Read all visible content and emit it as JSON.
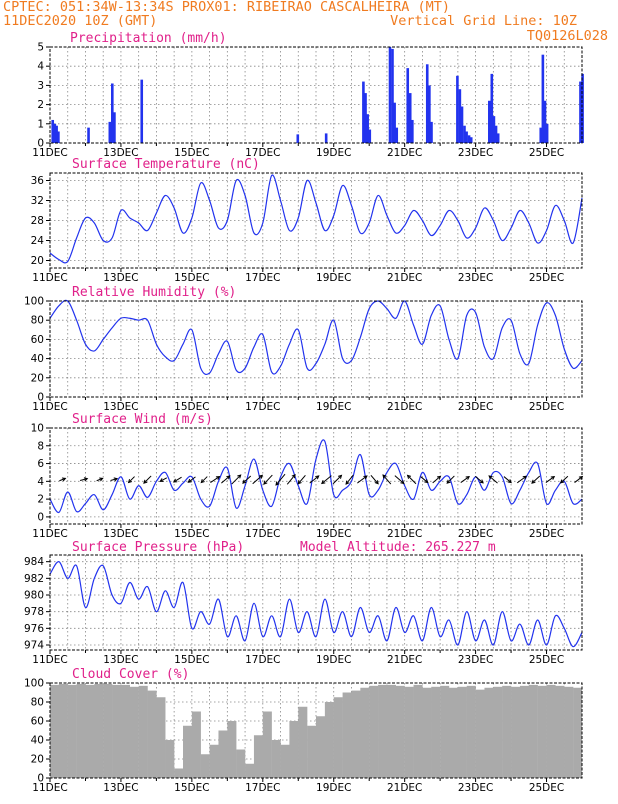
{
  "header": {
    "line1": "CPTEC:  051:34W-13:34S  PROX01: RIBEIRAO CASCALHEIRA (MT)",
    "date": "11DEC2020 10Z (GMT)",
    "vgrid": "Vertical Grid Line: 10Z",
    "code": "TQ0126L028"
  },
  "colors": {
    "header": "#f07b20",
    "title": "#e0208a",
    "series": "#2233ee",
    "cloud": "#aaaaaa",
    "grid": "#888888"
  },
  "x_axis": {
    "tick_labels": [
      "11DEC",
      "13DEC",
      "15DEC",
      "17DEC",
      "19DEC",
      "21DEC",
      "23DEC",
      "25DEC"
    ],
    "range_days": [
      0,
      15
    ]
  },
  "chart_data": [
    {
      "id": "precip",
      "type": "bar",
      "title": "Precipitation (mm/h)",
      "ylim": [
        0,
        5
      ],
      "yticks": [
        "0",
        "1",
        "2",
        "3",
        "4",
        "5"
      ],
      "x_unit": "day offset from 11DEC 10Z",
      "x": [
        0.04,
        0.1,
        0.15,
        0.2,
        1.05,
        1.65,
        1.72,
        1.78,
        2.55,
        6.95,
        7.75,
        8.8,
        8.86,
        8.92,
        8.98,
        9.55,
        9.62,
        9.68,
        9.74,
        10.05,
        10.12,
        10.18,
        10.6,
        10.66,
        10.72,
        11.45,
        11.52,
        11.58,
        11.65,
        11.71,
        11.78,
        11.84,
        12.35,
        12.42,
        12.48,
        12.54,
        12.6,
        13.8,
        13.86,
        13.92,
        13.98,
        14.92,
        14.98
      ],
      "values": [
        1.2,
        1.0,
        0.9,
        0.6,
        0.8,
        1.1,
        3.1,
        1.6,
        3.3,
        0.45,
        0.5,
        3.2,
        2.6,
        1.5,
        0.7,
        5.0,
        4.9,
        2.1,
        0.8,
        3.9,
        2.6,
        1.2,
        4.1,
        3.0,
        1.1,
        3.5,
        2.8,
        1.9,
        0.9,
        0.6,
        0.4,
        0.3,
        2.2,
        3.6,
        1.4,
        0.9,
        0.5,
        0.8,
        4.6,
        2.2,
        1.0,
        3.2,
        3.6
      ]
    },
    {
      "id": "temp",
      "type": "line",
      "title": "Surface Temperature (nC)",
      "ylim": [
        18.5,
        37.5
      ],
      "yticks": [
        "20",
        "24",
        "28",
        "32",
        "36"
      ],
      "x_unit": "day offset from 11DEC 10Z",
      "x": [
        0,
        0.25,
        0.5,
        0.75,
        1.0,
        1.25,
        1.5,
        1.75,
        2.0,
        2.25,
        2.5,
        2.75,
        3.0,
        3.25,
        3.5,
        3.75,
        4.0,
        4.25,
        4.5,
        4.75,
        5.0,
        5.25,
        5.5,
        5.75,
        6.0,
        6.25,
        6.5,
        6.75,
        7.0,
        7.25,
        7.5,
        7.75,
        8.0,
        8.25,
        8.5,
        8.75,
        9.0,
        9.25,
        9.5,
        9.75,
        10.0,
        10.25,
        10.5,
        10.75,
        11.0,
        11.25,
        11.5,
        11.75,
        12.0,
        12.25,
        12.5,
        12.75,
        13.0,
        13.25,
        13.5,
        13.75,
        14.0,
        14.25,
        14.5,
        14.75,
        15.0
      ],
      "values": [
        21.5,
        20.2,
        19.8,
        24.5,
        28.5,
        27.5,
        24.0,
        24.5,
        30.0,
        28.5,
        27.5,
        26.0,
        29.5,
        33.0,
        30.5,
        25.5,
        28.5,
        35.5,
        32.0,
        26.5,
        28.0,
        36.0,
        33.0,
        25.5,
        27.5,
        37.0,
        32.0,
        26.0,
        28.5,
        36.0,
        31.5,
        26.0,
        29.0,
        35.0,
        31.0,
        25.5,
        27.5,
        33.0,
        29.0,
        25.5,
        27.0,
        30.0,
        28.0,
        25.0,
        27.0,
        30.0,
        28.0,
        24.5,
        26.5,
        30.5,
        28.0,
        24.0,
        26.5,
        30.0,
        27.5,
        23.5,
        26.0,
        31.0,
        28.0,
        23.5,
        32.5
      ]
    },
    {
      "id": "rh",
      "type": "line",
      "title": "Relative Humidity (%)",
      "ylim": [
        0,
        100
      ],
      "yticks": [
        "0",
        "20",
        "40",
        "60",
        "80",
        "100"
      ],
      "x_unit": "day offset from 11DEC 10Z",
      "x": [
        0,
        0.25,
        0.5,
        0.75,
        1.0,
        1.25,
        1.5,
        1.75,
        2.0,
        2.25,
        2.5,
        2.75,
        3.0,
        3.25,
        3.5,
        3.75,
        4.0,
        4.25,
        4.5,
        4.75,
        5.0,
        5.25,
        5.5,
        5.75,
        6.0,
        6.25,
        6.5,
        6.75,
        7.0,
        7.25,
        7.5,
        7.75,
        8.0,
        8.25,
        8.5,
        8.75,
        9.0,
        9.25,
        9.5,
        9.75,
        10.0,
        10.25,
        10.5,
        10.75,
        11.0,
        11.25,
        11.5,
        11.75,
        12.0,
        12.25,
        12.5,
        12.75,
        13.0,
        13.25,
        13.5,
        13.75,
        14.0,
        14.25,
        14.5,
        14.75,
        15.0
      ],
      "values": [
        82,
        95,
        100,
        80,
        55,
        48,
        60,
        72,
        82,
        82,
        80,
        80,
        55,
        42,
        38,
        55,
        70,
        30,
        25,
        45,
        58,
        28,
        30,
        52,
        65,
        26,
        32,
        55,
        70,
        30,
        35,
        55,
        80,
        40,
        38,
        62,
        92,
        100,
        92,
        82,
        100,
        75,
        55,
        85,
        95,
        60,
        40,
        85,
        88,
        52,
        40,
        72,
        80,
        45,
        35,
        75,
        98,
        85,
        50,
        30,
        38
      ]
    },
    {
      "id": "wind",
      "type": "line",
      "title": "Surface Wind (m/s)",
      "ylim": [
        -0.8,
        10
      ],
      "yticks": [
        "0",
        "2",
        "4",
        "6",
        "8",
        "10"
      ],
      "x_unit": "day offset from 11DEC 10Z",
      "x": [
        0,
        0.25,
        0.5,
        0.75,
        1.0,
        1.25,
        1.5,
        1.75,
        2.0,
        2.25,
        2.5,
        2.75,
        3.0,
        3.25,
        3.5,
        3.75,
        4.0,
        4.25,
        4.5,
        4.75,
        5.0,
        5.25,
        5.5,
        5.75,
        6.0,
        6.25,
        6.5,
        6.75,
        7.0,
        7.25,
        7.5,
        7.75,
        8.0,
        8.25,
        8.5,
        8.75,
        9.0,
        9.25,
        9.5,
        9.75,
        10.0,
        10.25,
        10.5,
        10.75,
        11.0,
        11.25,
        11.5,
        11.75,
        12.0,
        12.25,
        12.5,
        12.75,
        13.0,
        13.25,
        13.5,
        13.75,
        14.0,
        14.25,
        14.5,
        14.75,
        15.0
      ],
      "values": [
        2.0,
        0.5,
        2.8,
        0.6,
        1.5,
        2.5,
        0.8,
        2.5,
        4.5,
        2.0,
        3.5,
        2.2,
        4.0,
        5.0,
        3.0,
        3.8,
        4.5,
        2.0,
        1.2,
        4.0,
        5.5,
        1.0,
        3.5,
        6.5,
        3.0,
        1.2,
        4.5,
        6.0,
        3.5,
        1.5,
        6.5,
        8.5,
        2.5,
        3.0,
        4.0,
        7.0,
        2.5,
        3.0,
        5.0,
        6.0,
        3.5,
        2.0,
        5.0,
        3.0,
        4.0,
        4.5,
        1.5,
        2.5,
        4.5,
        3.0,
        5.0,
        4.5,
        1.5,
        3.0,
        5.0,
        6.0,
        1.5,
        3.0,
        4.0,
        1.5,
        2.0
      ],
      "vectors_x": [
        0.35,
        0.95,
        1.4,
        1.8,
        2.3,
        2.75,
        3.2,
        3.6,
        4.0,
        4.35,
        4.65,
        4.95,
        5.25,
        5.55,
        5.85,
        6.15,
        6.5,
        6.8,
        7.1,
        7.45,
        7.8,
        8.1,
        8.45,
        8.8,
        9.15,
        9.5,
        9.85,
        10.2,
        10.55,
        10.9,
        11.3,
        11.7,
        12.1,
        12.5,
        12.9,
        13.3,
        13.7,
        14.1,
        14.5,
        14.9
      ],
      "vectors_u": [
        1.0,
        1.2,
        1.0,
        1.1,
        -1.0,
        -1.2,
        -1.1,
        -1.3,
        -1.2,
        -1.0,
        1.5,
        1.4,
        1.5,
        -1.3,
        1.6,
        -1.4,
        -1.5,
        1.3,
        -1.2,
        1.5,
        -1.6,
        1.4,
        -1.2,
        1.6,
        1.2,
        -1.3,
        1.5,
        -1.4,
        1.2,
        1.3,
        -1.2,
        1.4,
        1.3,
        -1.4,
        1.2,
        1.5,
        -1.3,
        1.4,
        -1.2,
        1.3
      ],
      "vectors_v": [
        0.4,
        0.3,
        0.4,
        0.3,
        -1.0,
        -1.2,
        -0.6,
        -0.8,
        -0.9,
        -1.0,
        1.0,
        1.2,
        1.5,
        -1.2,
        1.4,
        -1.5,
        -1.8,
        1.6,
        -1.4,
        1.2,
        -1.3,
        1.4,
        -1.5,
        1.2,
        -1.4,
        1.5,
        -1.3,
        1.4,
        -1.0,
        1.1,
        -1.2,
        1.0,
        -1.1,
        1.2,
        -1.0,
        1.1,
        -1.2,
        1.0,
        -1.1,
        1.0
      ]
    },
    {
      "id": "pres",
      "type": "line",
      "title": "Surface Pressure (hPa)",
      "annotation": "Model Altitude: 265.227 m",
      "ylim": [
        973.4,
        984.8
      ],
      "yticks": [
        "974",
        "976",
        "978",
        "980",
        "982",
        "984"
      ],
      "x_unit": "day offset from 11DEC 10Z",
      "x": [
        0,
        0.25,
        0.5,
        0.75,
        1.0,
        1.25,
        1.5,
        1.75,
        2.0,
        2.25,
        2.5,
        2.75,
        3.0,
        3.25,
        3.5,
        3.75,
        4.0,
        4.25,
        4.5,
        4.75,
        5.0,
        5.25,
        5.5,
        5.75,
        6.0,
        6.25,
        6.5,
        6.75,
        7.0,
        7.25,
        7.5,
        7.75,
        8.0,
        8.25,
        8.5,
        8.75,
        9.0,
        9.25,
        9.5,
        9.75,
        10.0,
        10.25,
        10.5,
        10.75,
        11.0,
        11.25,
        11.5,
        11.75,
        12.0,
        12.25,
        12.5,
        12.75,
        13.0,
        13.25,
        13.5,
        13.75,
        14.0,
        14.25,
        14.5,
        14.75,
        15.0
      ],
      "values": [
        982.5,
        984.0,
        982.0,
        983.5,
        978.5,
        982.0,
        983.5,
        980.0,
        979.0,
        981.5,
        979.5,
        981.0,
        978.0,
        980.5,
        978.5,
        981.5,
        976.0,
        978.0,
        976.5,
        979.5,
        975.0,
        977.5,
        974.5,
        979.0,
        975.0,
        977.5,
        975.0,
        979.5,
        975.5,
        978.0,
        975.0,
        979.5,
        975.5,
        978.0,
        975.0,
        978.5,
        975.5,
        977.5,
        974.5,
        978.5,
        975.5,
        977.5,
        974.5,
        978.5,
        975.0,
        977.0,
        974.0,
        978.0,
        974.5,
        977.0,
        974.0,
        978.0,
        974.5,
        976.5,
        974.0,
        977.0,
        974.0,
        977.5,
        976.0,
        973.8,
        975.5
      ]
    },
    {
      "id": "cloud",
      "type": "area",
      "title": "Cloud Cover (%)",
      "ylim": [
        0,
        100
      ],
      "yticks": [
        "0",
        "20",
        "40",
        "60",
        "80",
        "100"
      ],
      "x_unit": "day offset from 11DEC 10Z",
      "x": [
        0,
        0.25,
        0.5,
        0.75,
        1.0,
        1.25,
        1.5,
        1.75,
        2.0,
        2.25,
        2.5,
        2.75,
        3.0,
        3.25,
        3.5,
        3.75,
        4.0,
        4.25,
        4.5,
        4.75,
        5.0,
        5.25,
        5.5,
        5.75,
        6.0,
        6.25,
        6.5,
        6.75,
        7.0,
        7.25,
        7.5,
        7.75,
        8.0,
        8.25,
        8.5,
        8.75,
        9.0,
        9.25,
        9.5,
        9.75,
        10.0,
        10.25,
        10.5,
        10.75,
        11.0,
        11.25,
        11.5,
        11.75,
        12.0,
        12.25,
        12.5,
        12.75,
        13.0,
        13.25,
        13.5,
        13.75,
        14.0,
        14.25,
        14.5,
        14.75,
        15.0
      ],
      "values": [
        98,
        99,
        98,
        99,
        98,
        99,
        99,
        98,
        98,
        96,
        97,
        92,
        85,
        40,
        10,
        55,
        70,
        25,
        35,
        50,
        60,
        30,
        15,
        45,
        70,
        40,
        35,
        60,
        75,
        55,
        65,
        80,
        85,
        90,
        92,
        95,
        97,
        98,
        98,
        97,
        96,
        98,
        95,
        96,
        97,
        95,
        96,
        97,
        93,
        95,
        96,
        97,
        96,
        97,
        98,
        97,
        98,
        97,
        96,
        95,
        98
      ]
    }
  ]
}
